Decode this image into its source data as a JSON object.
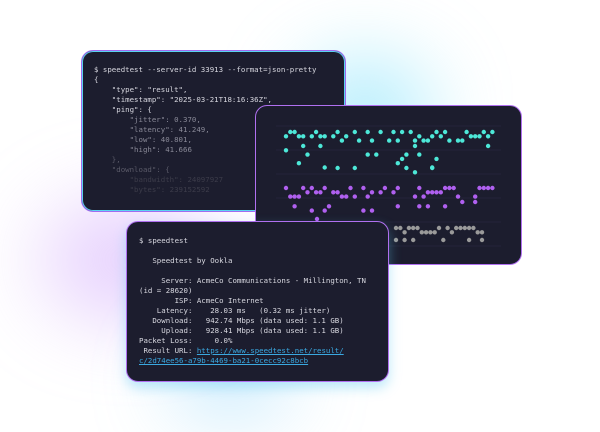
{
  "json_terminal": {
    "command": "$ speedtest --server-id 33913 --format=json-pretty",
    "lines": [
      "{",
      "    \"type\": \"result\",",
      "    \"timestamp\": \"2025-03-21T18:16:36Z\",",
      "    \"ping\": {",
      "        \"jitter\": 0.370,",
      "        \"latency\": 41.249,",
      "        \"low\": 40.801,",
      "        \"high\": 41.666",
      "    },",
      "    \"download\": {",
      "        \"bandwidth\": 24097927",
      "        \"bytes\": 239152592"
    ]
  },
  "chart_panel": {
    "colors": {
      "upper": "#4de8d8",
      "middle": "#b060f0",
      "lower": "#9a9a9a",
      "gridline": "#2a2c45"
    }
  },
  "text_terminal": {
    "command": "$ speedtest",
    "title": "   Speedtest by Ookla",
    "server": "     Server: AcmeCo Communications - Millington, TN",
    "server_id": "(id = 28620)",
    "isp": "        ISP: AcmeCo Internet",
    "latency": "    Latency:    28.03 ms   (0.32 ms jitter)",
    "download": "   Download:   942.74 Mbps (data used: 1.1 GB)",
    "upload": "     Upload:   928.41 Mbps (data used: 1.1 GB)",
    "packet_loss": "Packet Loss:     0.0%",
    "result_label": " Result URL: ",
    "result_url_1": "https://www.speedtest.net/result/",
    "result_url_2": "c/2d74ee56-a79b-4469-ba21-0cecc92c8bcb"
  }
}
